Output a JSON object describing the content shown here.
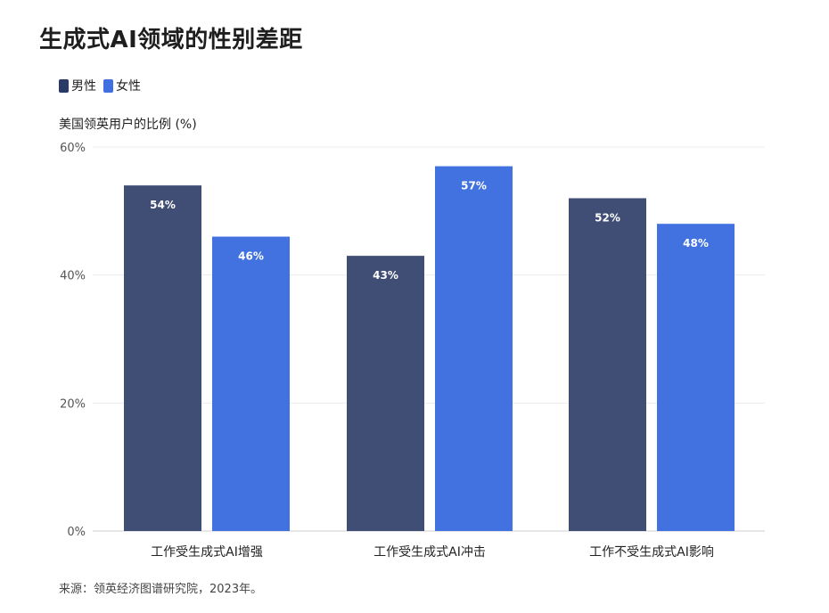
{
  "title": "生成式AI领域的性别差距",
  "source": "来源：领英经济图谱研究院，2023年。",
  "chart_data": {
    "type": "bar",
    "title": "生成式AI领域的性别差距",
    "ylabel": "美国领英用户的比例 (%)",
    "xlabel": "",
    "ylim": [
      0,
      60
    ],
    "yticks": [
      0,
      20,
      40,
      60
    ],
    "ytick_labels": [
      "0%",
      "20%",
      "40%",
      "60%"
    ],
    "grid": true,
    "legend_position": "top-left",
    "categories": [
      "工作受生成式AI增强",
      "工作受生成式AI冲击",
      "工作不受生成式AI影响"
    ],
    "series": [
      {
        "name": "男性",
        "color": "#404e76",
        "values": [
          54,
          43,
          52
        ],
        "labels": [
          "54%",
          "43%",
          "52%"
        ]
      },
      {
        "name": "女性",
        "color": "#4272e0",
        "values": [
          46,
          57,
          48
        ],
        "labels": [
          "46%",
          "57%",
          "48%"
        ]
      }
    ]
  }
}
